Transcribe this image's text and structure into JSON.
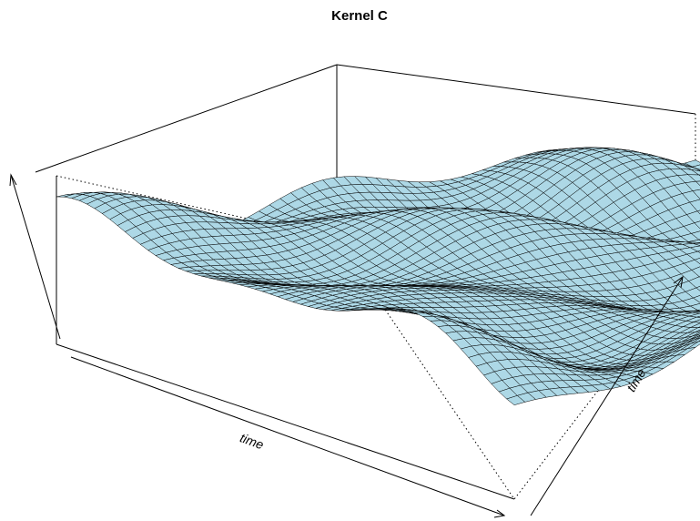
{
  "chart_data": {
    "type": "surface",
    "title": "Kernel C",
    "xlabel": "time",
    "ylabel": "time",
    "zlabel": "",
    "surface_color": "#add8e6",
    "mesh_color": "#000000",
    "grid_resolution": 60,
    "box": true
  }
}
